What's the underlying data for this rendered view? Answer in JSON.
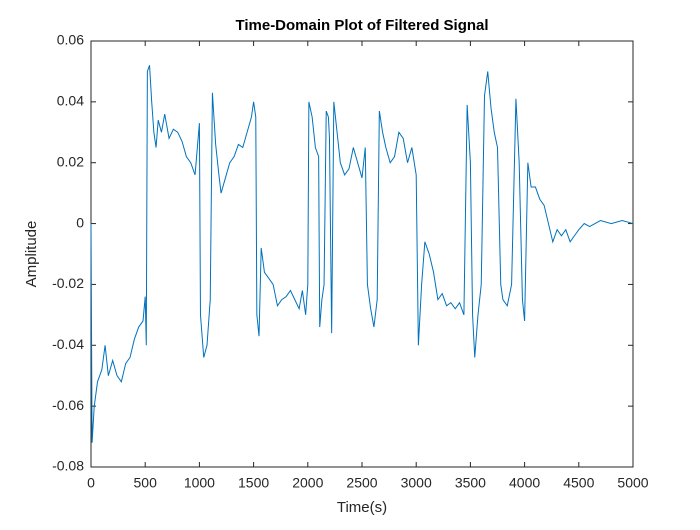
{
  "chart_data": {
    "type": "line",
    "title": "Time-Domain Plot of Filtered Signal",
    "x_label": "Time(s)",
    "y_label": "Amplitude",
    "xlim": [
      0,
      5000
    ],
    "ylim": [
      -0.08,
      0.06
    ],
    "xticks": [
      0,
      500,
      1000,
      1500,
      2000,
      2500,
      3000,
      3500,
      4000,
      4500,
      5000
    ],
    "yticks": [
      -0.08,
      -0.06,
      -0.04,
      -0.02,
      0,
      0.02,
      0.04,
      0.06
    ],
    "grid": false,
    "series": [
      {
        "color": "#0072bd",
        "x": [
          0,
          10,
          30,
          60,
          100,
          130,
          160,
          200,
          240,
          280,
          320,
          360,
          400,
          440,
          480,
          500,
          510,
          520,
          540,
          560,
          580,
          600,
          620,
          650,
          680,
          720,
          760,
          800,
          840,
          880,
          920,
          960,
          1000,
          1010,
          1040,
          1070,
          1100,
          1120,
          1150,
          1180,
          1200,
          1240,
          1280,
          1320,
          1360,
          1400,
          1440,
          1480,
          1500,
          1520,
          1530,
          1550,
          1570,
          1600,
          1640,
          1680,
          1720,
          1760,
          1800,
          1840,
          1880,
          1920,
          1950,
          1980,
          2000,
          2010,
          2040,
          2070,
          2100,
          2110,
          2130,
          2150,
          2170,
          2190,
          2200,
          2220,
          2240,
          2270,
          2300,
          2340,
          2380,
          2420,
          2460,
          2500,
          2530,
          2550,
          2580,
          2610,
          2640,
          2660,
          2690,
          2720,
          2760,
          2800,
          2840,
          2880,
          2920,
          2960,
          3000,
          3020,
          3050,
          3080,
          3120,
          3160,
          3200,
          3240,
          3280,
          3320,
          3360,
          3400,
          3440,
          3470,
          3500,
          3520,
          3540,
          3570,
          3600,
          3630,
          3660,
          3690,
          3720,
          3750,
          3780,
          3800,
          3840,
          3880,
          3920,
          3950,
          3980,
          4000,
          4030,
          4060,
          4100,
          4140,
          4180,
          4220,
          4260,
          4300,
          4340,
          4380,
          4420,
          4460,
          4500,
          4550,
          4600,
          4700,
          4800,
          4900,
          5000
        ],
        "values": [
          0,
          -0.072,
          -0.06,
          -0.052,
          -0.048,
          -0.04,
          -0.05,
          -0.045,
          -0.05,
          -0.052,
          -0.046,
          -0.044,
          -0.038,
          -0.034,
          -0.032,
          -0.024,
          -0.04,
          0.05,
          0.052,
          0.04,
          0.03,
          0.025,
          0.034,
          0.03,
          0.036,
          0.028,
          0.031,
          0.03,
          0.027,
          0.022,
          0.02,
          0.016,
          0.033,
          -0.03,
          -0.044,
          -0.04,
          -0.025,
          0.043,
          0.026,
          0.016,
          0.01,
          0.015,
          0.02,
          0.022,
          0.026,
          0.025,
          0.03,
          0.035,
          0.04,
          0.035,
          -0.03,
          -0.037,
          -0.008,
          -0.016,
          -0.018,
          -0.02,
          -0.027,
          -0.025,
          -0.024,
          -0.022,
          -0.025,
          -0.028,
          -0.022,
          -0.03,
          -0.02,
          0.04,
          0.035,
          0.025,
          0.022,
          -0.034,
          -0.025,
          -0.02,
          0.037,
          0.035,
          0.028,
          -0.036,
          0.04,
          0.03,
          0.02,
          0.016,
          0.018,
          0.025,
          0.02,
          0.015,
          0.025,
          -0.02,
          -0.028,
          -0.034,
          -0.025,
          0.037,
          0.03,
          0.025,
          0.02,
          0.022,
          0.03,
          0.028,
          0.02,
          0.025,
          0.016,
          -0.04,
          -0.02,
          -0.006,
          -0.01,
          -0.016,
          -0.025,
          -0.023,
          -0.027,
          -0.026,
          -0.028,
          -0.026,
          -0.03,
          0.039,
          0.02,
          -0.03,
          -0.044,
          -0.03,
          -0.02,
          0.042,
          0.05,
          0.038,
          0.03,
          0.025,
          -0.02,
          -0.025,
          -0.027,
          -0.02,
          0.041,
          0.02,
          -0.025,
          -0.032,
          0.02,
          0.012,
          0.012,
          0.008,
          0.006,
          0,
          -0.006,
          -0.002,
          -0.004,
          -0.002,
          -0.006,
          -0.004,
          -0.002,
          0,
          -0.001,
          0.001,
          0,
          0.001,
          0
        ]
      }
    ]
  }
}
